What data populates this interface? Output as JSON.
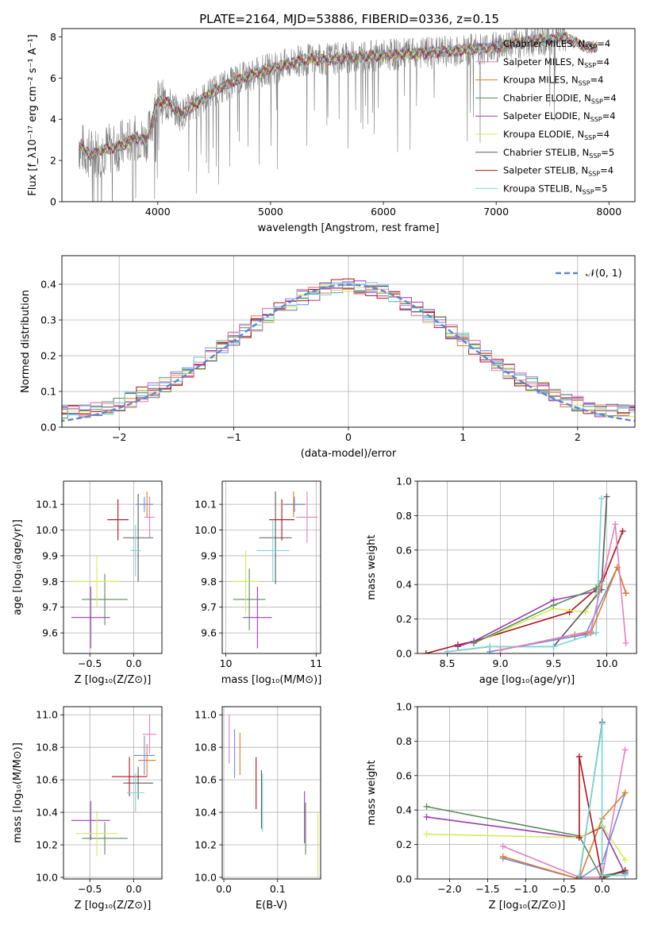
{
  "title": "PLATE=2164, MJD=53886, FIBERID=0336, z=0.15",
  "colors": {
    "blue": "#6c8ae0",
    "orange": "#e07c28",
    "green": "#5a8a5c",
    "purple": "#9a3bb0",
    "yellow": "#d4ec5a",
    "gray": "#5a5a5a",
    "red": "#b0121a",
    "cyan": "#7ad7d7",
    "pink": "#e57fbf",
    "normal": "#5b86d4"
  },
  "chart_data": [
    {
      "type": "line",
      "id": "spectrum",
      "xlabel": "wavelength [Angstrom, rest frame]",
      "ylabel": "Flux [f_λ10⁻¹⁷ erg cm⁻² s⁻¹ A⁻¹]",
      "xlim": [
        3150,
        8230
      ],
      "ylim": [
        0,
        8.4
      ],
      "xticks": [
        4000,
        5000,
        6000,
        7000,
        8000
      ],
      "yticks": [
        0,
        2,
        4,
        6,
        8
      ],
      "legend": [
        {
          "label": "Chabrier MILES, N",
          "sub": "SSP",
          "tail": "=4",
          "color": "blue"
        },
        {
          "label": "Salpeter MILES, N",
          "sub": "SSP",
          "tail": "=4",
          "color": "pink"
        },
        {
          "label": "Kroupa MILES, N",
          "sub": "SSP",
          "tail": "=4",
          "color": "orange"
        },
        {
          "label": "Chabrier ELODIE, N",
          "sub": "SSP",
          "tail": "=4",
          "color": "green"
        },
        {
          "label": "Salpeter ELODIE, N",
          "sub": "SSP",
          "tail": "=4",
          "color": "purple"
        },
        {
          "label": "Kroupa ELODIE, N",
          "sub": "SSP",
          "tail": "=4",
          "color": "yellow"
        },
        {
          "label": "Chabrier STELIB, N",
          "sub": "SSP",
          "tail": "=5",
          "color": "gray"
        },
        {
          "label": "Salpeter STELIB, N",
          "sub": "SSP",
          "tail": "=4",
          "color": "red"
        },
        {
          "label": "Kroupa STELIB, N",
          "sub": "SSP",
          "tail": "=5",
          "color": "cyan"
        }
      ],
      "legend_placement": "upper right",
      "model_continuum": {
        "x": [
          3300,
          3400,
          3500,
          3600,
          3700,
          3800,
          3900,
          4000,
          4100,
          4200,
          4300,
          4500,
          4700,
          4900,
          5100,
          5300,
          5500,
          5700,
          6000,
          6300,
          6600,
          7000,
          7300,
          7500,
          7600,
          7800,
          8000
        ],
        "y": [
          2.7,
          2.3,
          2.5,
          2.6,
          2.8,
          3.1,
          3.0,
          4.9,
          4.8,
          4.2,
          4.6,
          5.4,
          5.9,
          6.3,
          6.6,
          6.9,
          6.9,
          7.0,
          7.1,
          7.2,
          7.3,
          7.5,
          7.8,
          7.9,
          8.0,
          7.5,
          7.5
        ]
      }
    },
    {
      "type": "line",
      "id": "residuals",
      "xlabel": "(data-model)/error",
      "ylabel": "Normed distribution",
      "xlim": [
        -2.5,
        2.5
      ],
      "ylim": [
        0,
        0.48
      ],
      "xticks": [
        -2,
        -1,
        0,
        1,
        2
      ],
      "yticks": [
        0.0,
        0.1,
        0.2,
        0.3,
        0.4
      ],
      "legend_label": "𝒩(0, 1)",
      "legend_placement": "upper right",
      "grid": true
    },
    {
      "type": "scatter",
      "id": "age-vs-Z",
      "xlabel": "Z [log₁₀(Z/Z⊙)]",
      "ylabel": "age  [log₁₀(age/yr)]",
      "xlim": [
        -0.8,
        0.32
      ],
      "ylim": [
        9.52,
        10.19
      ],
      "xticks": [
        -0.5,
        0.0
      ],
      "yticks": [
        9.6,
        9.7,
        9.8,
        9.9,
        10.0,
        10.1
      ],
      "grid": true,
      "points": [
        {
          "x": 0.05,
          "y": 9.97,
          "xerr": 0.17,
          "yerr": 0.17,
          "color": "gray"
        },
        {
          "x": -0.18,
          "y": 10.04,
          "xerr": 0.12,
          "yerr": 0.08,
          "color": "red"
        },
        {
          "x": 0.15,
          "y": 10.1,
          "xerr": 0.07,
          "yerr": 0.05,
          "color": "orange"
        },
        {
          "x": 0.12,
          "y": 10.1,
          "xerr": 0.1,
          "yerr": 0.03,
          "color": "blue"
        },
        {
          "x": 0.18,
          "y": 10.05,
          "xerr": 0.06,
          "yerr": 0.08,
          "color": "pink"
        },
        {
          "x": 0.02,
          "y": 9.92,
          "xerr": 0.06,
          "yerr": 0.1,
          "color": "cyan"
        },
        {
          "x": -0.49,
          "y": 9.66,
          "xerr": 0.22,
          "yerr": 0.12,
          "color": "purple"
        },
        {
          "x": -0.33,
          "y": 9.73,
          "xerr": 0.26,
          "yerr": 0.1,
          "color": "green"
        },
        {
          "x": -0.42,
          "y": 9.8,
          "xerr": 0.28,
          "yerr": 0.1,
          "color": "yellow"
        }
      ]
    },
    {
      "type": "scatter",
      "id": "age-vs-mass",
      "xlabel": "mass [log₁₀(M/M⊙)]",
      "ylabel": "",
      "xlim": [
        9.96,
        11.05
      ],
      "ylim": [
        9.52,
        10.19
      ],
      "xticks": [
        10,
        11
      ],
      "yticks": [
        9.6,
        9.7,
        9.8,
        9.9,
        10.0,
        10.1
      ],
      "grid": true,
      "points": [
        {
          "x": 10.55,
          "y": 9.97,
          "xerr": 0.18,
          "yerr": 0.18,
          "color": "gray"
        },
        {
          "x": 10.62,
          "y": 10.04,
          "xerr": 0.14,
          "yerr": 0.08,
          "color": "red"
        },
        {
          "x": 10.75,
          "y": 10.1,
          "xerr": 0.12,
          "yerr": 0.05,
          "color": "orange"
        },
        {
          "x": 10.76,
          "y": 10.1,
          "xerr": 0.12,
          "yerr": 0.03,
          "color": "blue"
        },
        {
          "x": 10.9,
          "y": 10.05,
          "xerr": 0.12,
          "yerr": 0.1,
          "color": "pink"
        },
        {
          "x": 10.52,
          "y": 9.92,
          "xerr": 0.18,
          "yerr": 0.12,
          "color": "cyan"
        },
        {
          "x": 10.35,
          "y": 9.66,
          "xerr": 0.16,
          "yerr": 0.12,
          "color": "purple"
        },
        {
          "x": 10.26,
          "y": 9.73,
          "xerr": 0.18,
          "yerr": 0.12,
          "color": "green"
        },
        {
          "x": 10.22,
          "y": 9.8,
          "xerr": 0.16,
          "yerr": 0.12,
          "color": "yellow"
        }
      ]
    },
    {
      "type": "line",
      "id": "massweight-vs-age",
      "xlabel": "age  [log₁₀(age/yr)]",
      "ylabel": "mass weight",
      "xlim": [
        8.22,
        10.28
      ],
      "ylim": [
        0,
        1.0
      ],
      "xticks": [
        8.5,
        9.0,
        9.5,
        10.0
      ],
      "yticks": [
        0.0,
        0.2,
        0.4,
        0.6,
        0.8,
        1.0
      ],
      "grid": true,
      "series": [
        {
          "color": "red",
          "x": [
            8.3,
            8.6,
            8.75,
            9.65,
            9.95,
            10.15
          ],
          "y": [
            0.0,
            0.05,
            0.07,
            0.24,
            0.4,
            0.71
          ]
        },
        {
          "color": "purple",
          "x": [
            8.6,
            8.75,
            9.5,
            9.9
          ],
          "y": [
            0.04,
            0.07,
            0.31,
            0.36
          ]
        },
        {
          "color": "yellow",
          "x": [
            8.75,
            9.5,
            9.8,
            9.95
          ],
          "y": [
            0.06,
            0.26,
            0.24,
            0.4
          ]
        },
        {
          "color": "green",
          "x": [
            8.75,
            9.5,
            9.9,
            9.95
          ],
          "y": [
            0.06,
            0.28,
            0.38,
            0.42
          ]
        },
        {
          "color": "gray",
          "x": [
            8.5,
            8.9,
            9.5,
            9.95,
            10.0
          ],
          "y": [
            0.01,
            0.04,
            0.04,
            0.37,
            0.91
          ]
        },
        {
          "color": "cyan",
          "x": [
            8.5,
            8.9,
            9.5,
            9.9,
            9.95
          ],
          "y": [
            0.01,
            0.04,
            0.04,
            0.12,
            0.9
          ]
        },
        {
          "color": "blue",
          "x": [
            8.9,
            9.7,
            9.8,
            10.1,
            10.18
          ],
          "y": [
            0.01,
            0.1,
            0.11,
            0.5,
            0.35
          ]
        },
        {
          "color": "orange",
          "x": [
            9.0,
            9.7,
            9.85,
            10.1,
            10.18
          ],
          "y": [
            0.02,
            0.11,
            0.12,
            0.5,
            0.35
          ]
        },
        {
          "color": "pink",
          "x": [
            9.0,
            9.85,
            10.08,
            10.18
          ],
          "y": [
            0.02,
            0.13,
            0.75,
            0.06
          ]
        }
      ]
    },
    {
      "type": "scatter",
      "id": "mass-vs-Z",
      "xlabel": "Z [log₁₀(Z/Z⊙)]",
      "ylabel": "mass [log₁₀(M/M⊙)]",
      "xlim": [
        -0.8,
        0.32
      ],
      "ylim": [
        9.99,
        11.05
      ],
      "xticks": [
        -0.5,
        0.0
      ],
      "yticks": [
        10.0,
        10.2,
        10.4,
        10.6,
        10.8,
        11.0
      ],
      "grid": true,
      "points": [
        {
          "x": 0.05,
          "y": 10.58,
          "xerr": 0.17,
          "yerr": 0.1,
          "color": "gray"
        },
        {
          "x": -0.05,
          "y": 10.62,
          "xerr": 0.2,
          "yerr": 0.12,
          "color": "red"
        },
        {
          "x": 0.15,
          "y": 10.72,
          "xerr": 0.1,
          "yerr": 0.1,
          "color": "orange"
        },
        {
          "x": 0.12,
          "y": 10.75,
          "xerr": 0.12,
          "yerr": 0.12,
          "color": "blue"
        },
        {
          "x": 0.18,
          "y": 10.88,
          "xerr": 0.08,
          "yerr": 0.12,
          "color": "pink"
        },
        {
          "x": 0.02,
          "y": 10.52,
          "xerr": 0.1,
          "yerr": 0.12,
          "color": "cyan"
        },
        {
          "x": -0.49,
          "y": 10.35,
          "xerr": 0.22,
          "yerr": 0.12,
          "color": "purple"
        },
        {
          "x": -0.33,
          "y": 10.24,
          "xerr": 0.26,
          "yerr": 0.1,
          "color": "green"
        },
        {
          "x": -0.42,
          "y": 10.27,
          "xerr": 0.24,
          "yerr": 0.14,
          "color": "yellow"
        }
      ]
    },
    {
      "type": "scatter",
      "id": "mass-vs-EBV",
      "xlabel": "E(B-V)",
      "ylabel": "",
      "xlim": [
        -0.003,
        0.18
      ],
      "ylim": [
        9.99,
        11.05
      ],
      "xticks": [
        0.0,
        0.1
      ],
      "yticks": [
        10.0,
        10.2,
        10.4,
        10.6,
        10.8,
        11.0
      ],
      "grid": true,
      "points": [
        {
          "x": 0.01,
          "y": 10.85,
          "yerr": 0.15,
          "color": "pink"
        },
        {
          "x": 0.02,
          "y": 10.76,
          "yerr": 0.15,
          "color": "blue"
        },
        {
          "x": 0.03,
          "y": 10.76,
          "yerr": 0.13,
          "color": "orange"
        },
        {
          "x": 0.06,
          "y": 10.58,
          "yerr": 0.16,
          "color": "red"
        },
        {
          "x": 0.07,
          "y": 10.48,
          "yerr": 0.18,
          "color": "gray"
        },
        {
          "x": 0.072,
          "y": 10.46,
          "yerr": 0.18,
          "color": "cyan"
        },
        {
          "x": 0.15,
          "y": 10.37,
          "yerr": 0.16,
          "color": "purple"
        },
        {
          "x": 0.152,
          "y": 10.3,
          "yerr": 0.16,
          "color": "green"
        },
        {
          "x": 0.175,
          "y": 10.2,
          "yerr": 0.2,
          "color": "yellow"
        }
      ]
    },
    {
      "type": "line",
      "id": "massweight-vs-Z",
      "xlabel": "Z [log₁₀(Z/Z⊙)]",
      "ylabel": "mass weight",
      "xlim": [
        -2.42,
        0.45
      ],
      "ylim": [
        0,
        1.0
      ],
      "xticks": [
        -2.0,
        -1.5,
        -1.0,
        -0.5,
        0.0
      ],
      "yticks": [
        0.0,
        0.2,
        0.4,
        0.6,
        0.8,
        1.0
      ],
      "grid": true,
      "series": [
        {
          "color": "green",
          "x": [
            -2.3,
            -0.3,
            0.0,
            0.3
          ],
          "y": [
            0.42,
            0.25,
            0.0,
            0.05
          ]
        },
        {
          "color": "purple",
          "x": [
            -2.3,
            -0.3,
            0.0,
            0.3
          ],
          "y": [
            0.36,
            0.24,
            0.3,
            0.03
          ]
        },
        {
          "color": "yellow",
          "x": [
            -2.3,
            -0.3,
            0.0,
            0.3
          ],
          "y": [
            0.26,
            0.24,
            0.31,
            0.11
          ]
        },
        {
          "color": "pink",
          "x": [
            -1.3,
            -0.3,
            0.0,
            0.3
          ],
          "y": [
            0.19,
            0.01,
            0.01,
            0.75
          ]
        },
        {
          "color": "blue",
          "x": [
            -1.3,
            -0.3,
            0.0,
            0.3
          ],
          "y": [
            0.12,
            0.0,
            0.09,
            0.5
          ]
        },
        {
          "color": "orange",
          "x": [
            -1.3,
            -0.3,
            0.0,
            0.3
          ],
          "y": [
            0.13,
            0.0,
            0.35,
            0.5
          ]
        },
        {
          "color": "red",
          "x": [
            -0.3,
            -0.3,
            0.0,
            0.3
          ],
          "y": [
            0.24,
            0.71,
            0.01,
            0.05
          ]
        },
        {
          "color": "gray",
          "x": [
            -0.3,
            0.0,
            0.0,
            0.3
          ],
          "y": [
            0.01,
            0.91,
            0.02,
            0.04
          ]
        },
        {
          "color": "cyan",
          "x": [
            -0.3,
            0.0,
            0.0,
            0.3
          ],
          "y": [
            0.02,
            0.9,
            0.02,
            0.02
          ]
        }
      ]
    }
  ]
}
